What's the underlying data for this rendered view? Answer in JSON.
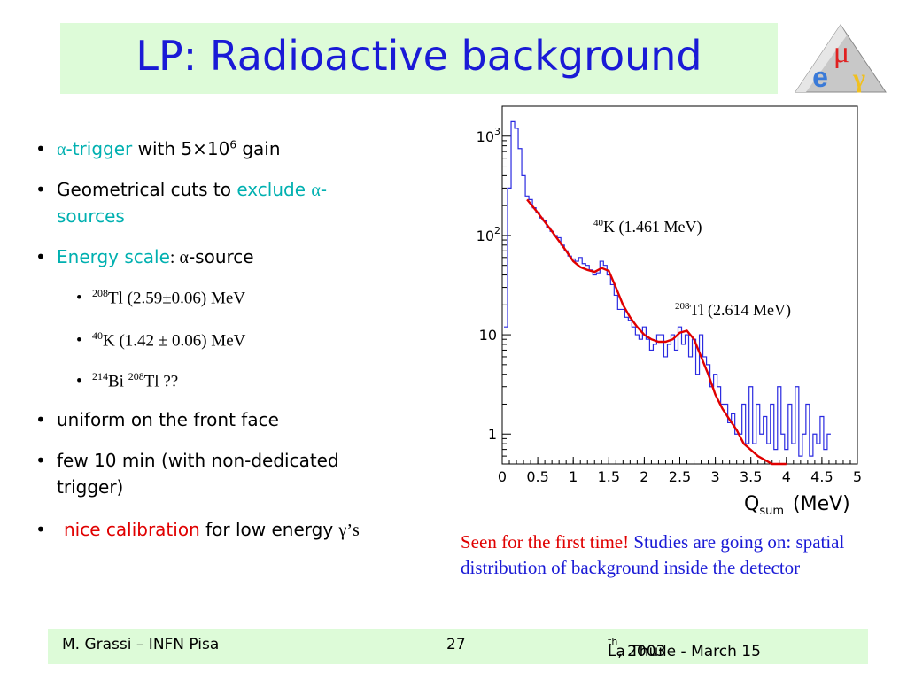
{
  "title": "LP: Radioactive background",
  "logo": {
    "mu": "μ",
    "e": "e",
    "gamma": "γ"
  },
  "bullets": {
    "b1": {
      "alpha": "α",
      "trigger": "-trigger",
      "rest": " with 5×10",
      "sup": "6",
      "end": " gain"
    },
    "b2": {
      "text": "Geometrical cuts to ",
      "exclude": "exclude ",
      "alpha": "α",
      "dash": "-",
      "sources": "sources"
    },
    "b3": {
      "energy": "Energy scale",
      "colon": ": ",
      "alpha": "α",
      "rest": "-source"
    },
    "s1": {
      "sup": "208",
      "text": "Tl  (2.59±0.06) MeV"
    },
    "s2": {
      "sup": "40",
      "text": "K (1.42 ± 0.06) MeV"
    },
    "s3": {
      "sup1": "214",
      "bi": "Bi ",
      "sup2": "208",
      "text": "Tl ??"
    },
    "b4": "uniform on the front face",
    "b5a": "few 10 min (with non-dedicated",
    "b5b": "trigger)",
    "b6": {
      "nice": "nice calibration",
      "rest": " for low energy ",
      "gamma": "γ",
      "s": "’s"
    }
  },
  "chart_data": {
    "type": "line",
    "xlabel": "Q",
    "xlabel_sub": "sum",
    "xlabel_unit": "(MeV)",
    "xlim": [
      0,
      5
    ],
    "ylim": [
      0.5,
      2000
    ],
    "yscale": "log",
    "x_ticks": [
      "0",
      "0.5",
      "1",
      "1.5",
      "2",
      "2.5",
      "3",
      "3.5",
      "4",
      "4.5",
      "5"
    ],
    "y_ticks": [
      {
        "base": "10",
        "exp": "3"
      },
      {
        "base": "10",
        "exp": "2"
      },
      {
        "base": "10",
        "exp": ""
      },
      {
        "base": "1",
        "exp": ""
      }
    ],
    "annotations": [
      {
        "sup": "40",
        "text": "K (1.461 MeV)"
      },
      {
        "sup": "208",
        "text": "Tl (2.614 MeV)"
      }
    ],
    "series": [
      {
        "color": "#2a2ae0",
        "x": [
          0.05,
          0.1,
          0.15,
          0.2,
          0.25,
          0.3,
          0.35,
          0.4,
          0.45,
          0.5,
          0.55,
          0.6,
          0.65,
          0.7,
          0.75,
          0.8,
          0.85,
          0.9,
          0.95,
          1.0,
          1.05,
          1.1,
          1.15,
          1.2,
          1.25,
          1.3,
          1.35,
          1.4,
          1.45,
          1.5,
          1.55,
          1.6,
          1.65,
          1.7,
          1.75,
          1.8,
          1.85,
          1.9,
          1.95,
          2.0,
          2.05,
          2.1,
          2.15,
          2.2,
          2.25,
          2.3,
          2.35,
          2.4,
          2.45,
          2.5,
          2.55,
          2.6,
          2.65,
          2.7,
          2.75,
          2.8,
          2.85,
          2.9,
          2.95,
          3.0,
          3.05,
          3.1,
          3.15,
          3.2,
          3.25,
          3.3,
          3.35,
          3.4,
          3.45,
          3.5,
          3.55,
          3.6,
          3.65,
          3.7,
          3.75,
          3.8,
          3.85,
          3.9,
          3.95,
          4.0,
          4.05,
          4.1,
          4.15,
          4.2,
          4.25,
          4.3,
          4.35,
          4.4,
          4.45,
          4.5,
          4.55,
          4.6
        ],
        "y": [
          12,
          300,
          1400,
          1200,
          750,
          400,
          250,
          230,
          190,
          170,
          150,
          140,
          120,
          110,
          100,
          95,
          80,
          70,
          62,
          58,
          55,
          60,
          52,
          50,
          45,
          40,
          42,
          55,
          50,
          40,
          32,
          25,
          18,
          18,
          15,
          14,
          12,
          10,
          9,
          12,
          9,
          7,
          8,
          10,
          10,
          6,
          8,
          10,
          7,
          12,
          8,
          10,
          6,
          9,
          4,
          10,
          6,
          5,
          3,
          4,
          3,
          2,
          2,
          1.3,
          1.6,
          1,
          1,
          2,
          0.8,
          3,
          0.8,
          2,
          1,
          1.5,
          0.8,
          2,
          0.7,
          3,
          1,
          0.7,
          2,
          0.8,
          3,
          0.6,
          1,
          2,
          0.6,
          1,
          0.8,
          1.5,
          0.7,
          1
        ]
      },
      {
        "color": "#e00000",
        "x": [
          0.35,
          0.5,
          0.7,
          0.9,
          1.0,
          1.1,
          1.2,
          1.3,
          1.4,
          1.5,
          1.6,
          1.7,
          1.8,
          1.9,
          2.0,
          2.1,
          2.2,
          2.3,
          2.4,
          2.5,
          2.6,
          2.7,
          2.8,
          2.9,
          3.0,
          3.1,
          3.2,
          3.3,
          3.4,
          3.6,
          3.8,
          4.0
        ],
        "y": [
          230,
          170,
          110,
          70,
          55,
          48,
          45,
          43,
          47,
          44,
          30,
          20,
          15,
          12,
          10,
          9,
          8.5,
          8.5,
          9,
          10.5,
          11,
          9,
          6,
          4,
          2.5,
          1.8,
          1.4,
          1.1,
          0.8,
          0.6,
          0.5,
          0.5
        ]
      }
    ]
  },
  "caption": {
    "red": "Seen for the first time",
    "bang": "!",
    "blue": " Studies are going on: spatial distribution of background inside the detector"
  },
  "footer": {
    "left": "M. Grassi – INFN Pisa",
    "center": "27",
    "right_pre": "La Thuile -  March 15",
    "right_sup": "th",
    "right_post": " , 2003"
  }
}
